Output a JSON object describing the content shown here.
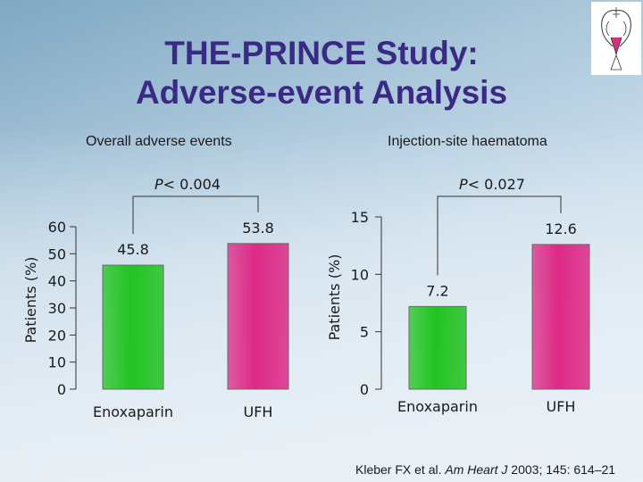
{
  "slide": {
    "title_line1": "THE-PRINCE Study:",
    "title_line2": "Adverse-event Analysis",
    "citation_pre": "Kleber FX et al. ",
    "citation_journal": "Am Heart J",
    "citation_post": " 2003; 145: 614–21"
  },
  "colors": {
    "title": "#3a2a86",
    "enoxaparin": "#22c322",
    "ufh": "#dd2a86"
  },
  "chart_data": [
    {
      "type": "bar",
      "title": "Overall adverse events",
      "annotation_p": "P",
      "annotation_rest": "< 0.004",
      "ylabel": "Patients (%)",
      "yticks": [
        0,
        10,
        20,
        30,
        40,
        50,
        60
      ],
      "ylim": [
        0,
        60
      ],
      "categories": [
        "Enoxaparin",
        "UFH"
      ],
      "values": [
        45.8,
        53.8
      ],
      "value_labels": [
        "45.8",
        "53.8"
      ],
      "bar_colors": [
        "#22c322",
        "#dd2a86"
      ]
    },
    {
      "type": "bar",
      "title": "Injection-site haematoma",
      "annotation_p": "P",
      "annotation_rest": "< 0.027",
      "ylabel": "Patients (%)",
      "yticks": [
        0,
        5,
        10,
        15
      ],
      "ylim": [
        0,
        15
      ],
      "categories": [
        "Enoxaparin",
        "UFH"
      ],
      "values": [
        7.2,
        12.6
      ],
      "value_labels": [
        "7.2",
        "12.6"
      ],
      "bar_colors": [
        "#22c322",
        "#dd2a86"
      ]
    }
  ]
}
